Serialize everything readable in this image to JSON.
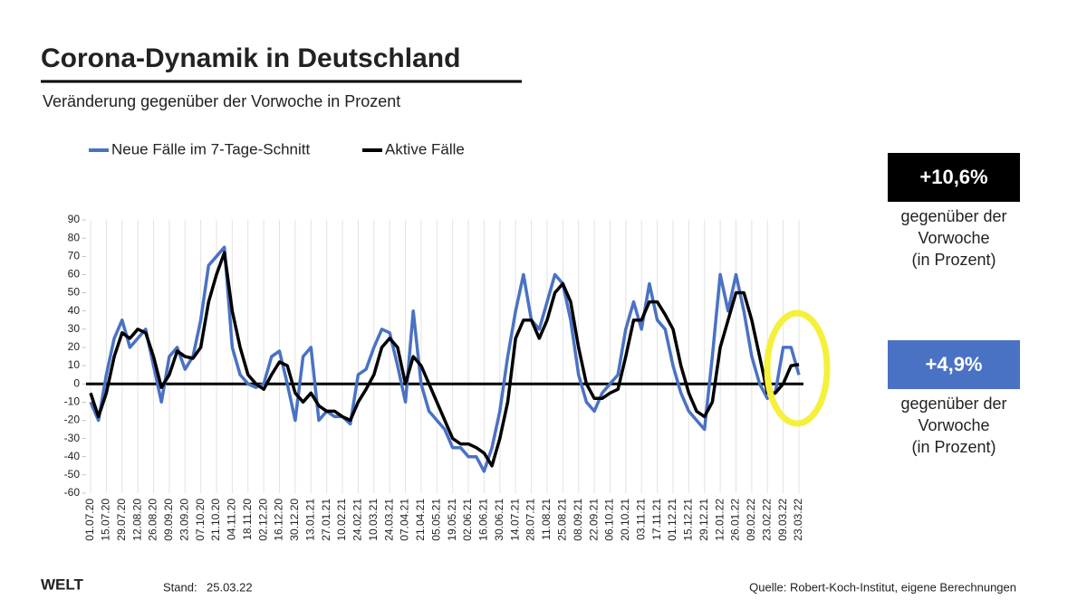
{
  "chart_data": {
    "type": "line",
    "title": "Corona-Dynamik in Deutschland",
    "subtitle": "Veränderung gegenüber der Vorwoche in Prozent",
    "categories": [
      "01.07.20",
      null,
      "15.07.20",
      null,
      "29.07.20",
      null,
      "12.08.20",
      null,
      "26.08.20",
      null,
      "09.09.20",
      null,
      "23.09.20",
      null,
      "07.10.20",
      null,
      "21.10.20",
      null,
      "04.11.20",
      null,
      "18.11.20",
      null,
      "02.12.20",
      null,
      "16.12.20",
      null,
      "30.12.20",
      null,
      "13.01.21",
      null,
      "27.01.21",
      null,
      "10.02.21",
      null,
      "24.02.21",
      null,
      "10.03.21",
      null,
      "24.03.21",
      null,
      "07.04.21",
      null,
      "21.04.21",
      null,
      "05.05.21",
      null,
      "19.05.21",
      null,
      "02.06.21",
      null,
      "16.06.21",
      null,
      "30.06.21",
      null,
      "14.07.21",
      null,
      "28.07.21",
      null,
      "11.08.21",
      null,
      "25.08.21",
      null,
      "08.09.21",
      null,
      "22.09.21",
      null,
      "06.10.21",
      null,
      "20.10.21",
      null,
      "03.11.21",
      null,
      "17.11.21",
      null,
      "01.12.21",
      null,
      "15.12.21",
      null,
      "29.12.21",
      null,
      "12.01.22",
      null,
      "26.01.22",
      null,
      "09.02.22",
      null,
      "23.02.22",
      null,
      "09.03.22",
      null,
      "23.03.22"
    ],
    "series": [
      {
        "name": "Neue Fälle im 7-Tage-Schnitt",
        "color": "#4a72c4",
        "values": [
          -10,
          -20,
          5,
          25,
          35,
          20,
          25,
          30,
          10,
          -10,
          15,
          20,
          8,
          15,
          35,
          65,
          70,
          75,
          20,
          5,
          0,
          -2,
          0,
          15,
          18,
          0,
          -20,
          15,
          20,
          -20,
          -15,
          -18,
          -18,
          -22,
          5,
          8,
          20,
          30,
          28,
          10,
          -10,
          40,
          0,
          -15,
          -20,
          -25,
          -35,
          -35,
          -40,
          -40,
          -48,
          -35,
          -15,
          15,
          40,
          60,
          35,
          30,
          45,
          60,
          55,
          35,
          5,
          -10,
          -15,
          -5,
          0,
          5,
          30,
          45,
          30,
          55,
          35,
          30,
          10,
          -5,
          -15,
          -20,
          -25,
          15,
          60,
          40,
          60,
          40,
          15,
          0,
          -8,
          -5,
          20,
          20,
          4.9
        ]
      },
      {
        "name": "Aktive Fälle",
        "color": "#000000",
        "values": [
          -5,
          -18,
          -5,
          15,
          28,
          25,
          30,
          28,
          15,
          -2,
          5,
          18,
          15,
          14,
          20,
          45,
          60,
          72,
          40,
          20,
          5,
          0,
          -3,
          5,
          12,
          10,
          -5,
          -10,
          -5,
          -12,
          -15,
          -15,
          -18,
          -20,
          -10,
          -3,
          5,
          20,
          25,
          20,
          0,
          15,
          10,
          0,
          -10,
          -20,
          -30,
          -33,
          -33,
          -35,
          -38,
          -45,
          -30,
          -10,
          25,
          35,
          35,
          25,
          35,
          50,
          55,
          45,
          20,
          0,
          -8,
          -8,
          -5,
          -3,
          15,
          35,
          35,
          45,
          45,
          38,
          30,
          10,
          -5,
          -15,
          -18,
          -10,
          20,
          35,
          50,
          50,
          35,
          15,
          -5,
          -5,
          0,
          10,
          10.6
        ]
      }
    ],
    "ylim": [
      -60,
      90
    ],
    "yticks": [
      -60,
      -50,
      -40,
      -30,
      -20,
      -10,
      0,
      10,
      20,
      30,
      40,
      50,
      60,
      70,
      80,
      90
    ],
    "annotations": [
      {
        "label": "+10,6%",
        "color": "#000000",
        "text": [
          "gegenüber der",
          "Vorwoche",
          "(in Prozent)"
        ]
      },
      {
        "label": "+4,9%",
        "color": "#4a72c4",
        "text": [
          "gegenüber der",
          "Vorwoche",
          "(in Prozent)"
        ]
      }
    ],
    "logo": "WELT",
    "stand_label": "Stand:",
    "stand_date": "25.03.22",
    "source": "Quelle: Robert-Koch-Institut, eigene Berechnungen"
  }
}
